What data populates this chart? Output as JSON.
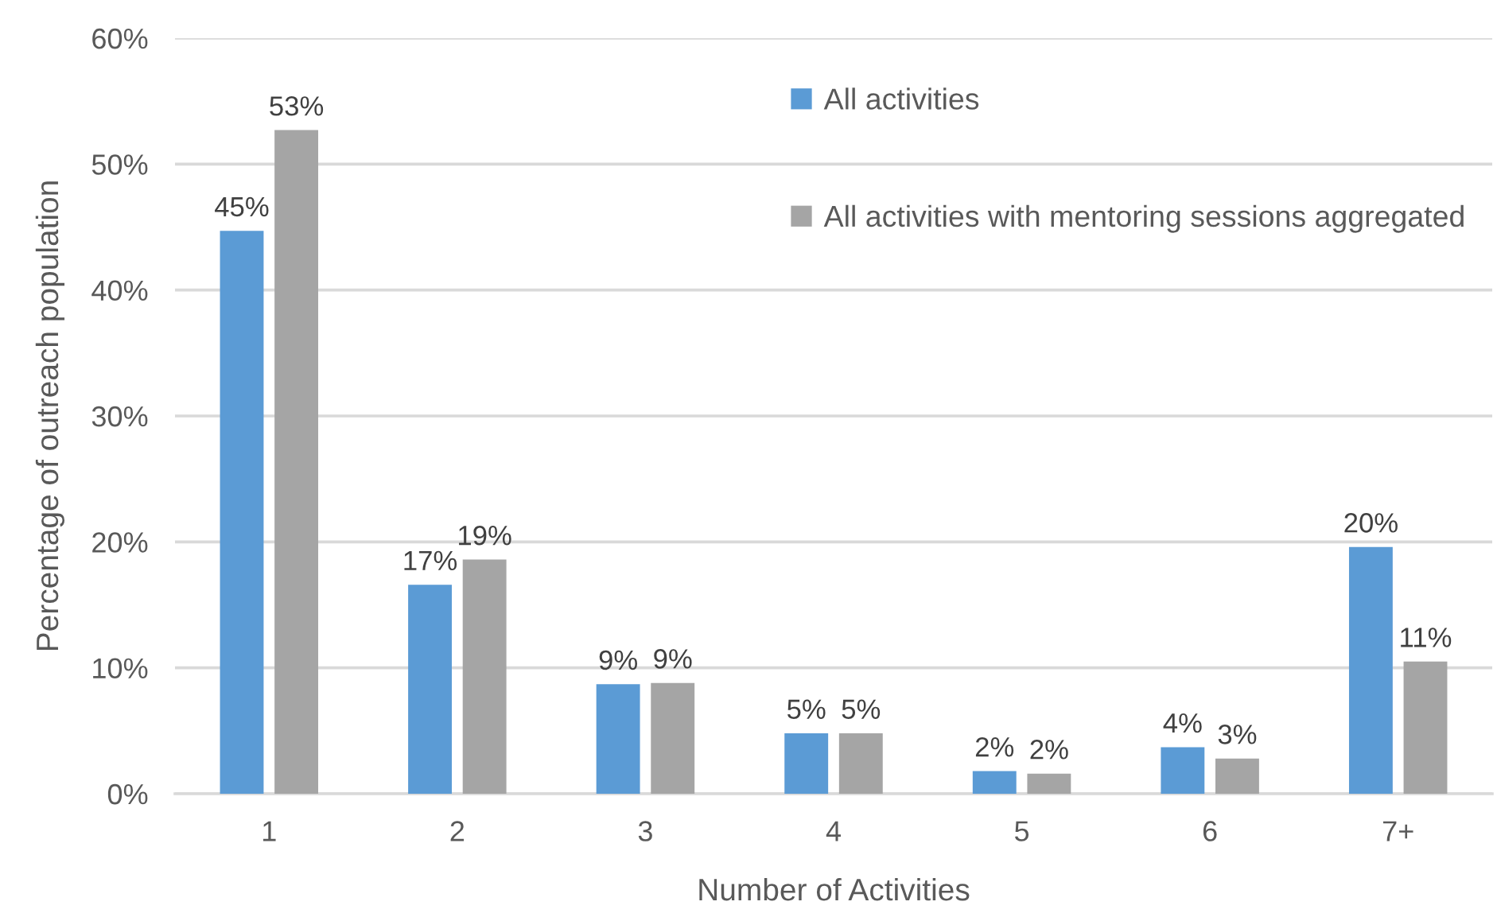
{
  "chart_data": {
    "type": "bar",
    "xlabel": "Number of Activities",
    "ylabel": "Percentage of outreach population",
    "categories": [
      "1",
      "2",
      "3",
      "4",
      "5",
      "6",
      "7+"
    ],
    "series": [
      {
        "name": "All activities",
        "color": "#5b9bd5",
        "values": [
          44.7,
          16.6,
          8.7,
          4.8,
          1.8,
          3.7,
          19.6
        ],
        "value_labels": [
          "45%",
          "17%",
          "9%",
          "5%",
          "2%",
          "4%",
          "20%"
        ]
      },
      {
        "name": "All activities with mentoring sessions aggregated",
        "color": "#a5a5a5",
        "values": [
          52.7,
          18.6,
          8.8,
          4.8,
          1.6,
          2.8,
          10.5
        ],
        "value_labels": [
          "53%",
          "19%",
          "9%",
          "5%",
          "2%",
          "3%",
          "11%"
        ]
      }
    ],
    "ylim": [
      0,
      60
    ],
    "yticks": [
      {
        "value": 0,
        "label": "0%"
      },
      {
        "value": 10,
        "label": "10%"
      },
      {
        "value": 20,
        "label": "20%"
      },
      {
        "value": 30,
        "label": "30%"
      },
      {
        "value": 40,
        "label": "40%"
      },
      {
        "value": 50,
        "label": "50%"
      },
      {
        "value": 60,
        "label": "60%"
      }
    ],
    "grid": "y",
    "legend": "top right"
  }
}
